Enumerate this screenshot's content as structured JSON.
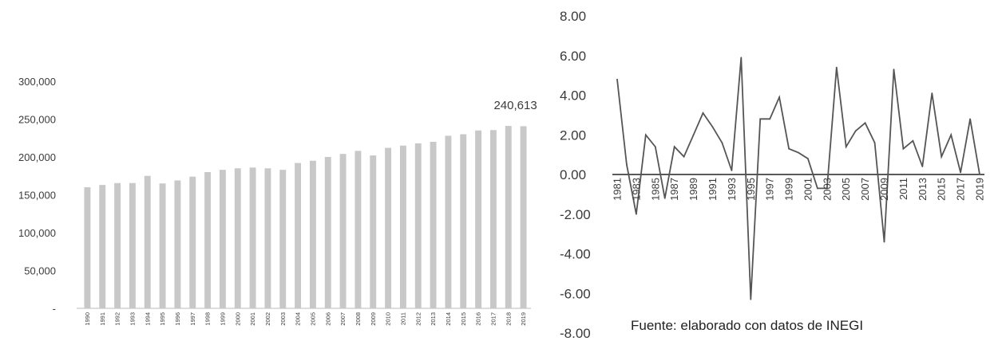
{
  "chart_data": [
    {
      "type": "bar",
      "categories": [
        "1990",
        "1991",
        "1992",
        "1993",
        "1994",
        "1995",
        "1996",
        "1997",
        "1998",
        "1999",
        "2000",
        "2001",
        "2002",
        "2003",
        "2004",
        "2005",
        "2006",
        "2007",
        "2008",
        "2009",
        "2010",
        "2011",
        "2012",
        "2013",
        "2014",
        "2015",
        "2016",
        "2017",
        "2018",
        "2019"
      ],
      "values": [
        160000,
        163000,
        165500,
        165500,
        175000,
        165000,
        169000,
        174000,
        180000,
        183000,
        185000,
        186000,
        185000,
        183000,
        192000,
        195000,
        200000,
        204000,
        208000,
        202000,
        212000,
        215000,
        218000,
        220000,
        228000,
        230000,
        235000,
        235500,
        241000,
        240613
      ],
      "ylim": [
        0,
        300000
      ],
      "yticks": [
        "300,000",
        "250,000",
        "200,000",
        "150,000",
        "100,000",
        "50,000",
        "-"
      ],
      "annotations": [
        {
          "category": "2019",
          "text": "240,613"
        }
      ],
      "color": "#c8c8c8"
    },
    {
      "type": "line",
      "x": [
        1981,
        1982,
        1983,
        1984,
        1985,
        1986,
        1987,
        1988,
        1989,
        1990,
        1991,
        1992,
        1993,
        1994,
        1995,
        1996,
        1997,
        1998,
        1999,
        2000,
        2001,
        2002,
        2003,
        2004,
        2005,
        2006,
        2007,
        2008,
        2009,
        2010,
        2011,
        2012,
        2013,
        2014,
        2015,
        2016,
        2017,
        2018,
        2019
      ],
      "values": [
        4.8,
        0.5,
        -2.0,
        2.0,
        1.4,
        -1.2,
        1.4,
        0.9,
        2.0,
        3.1,
        2.4,
        1.6,
        0.2,
        5.9,
        -6.3,
        2.8,
        2.8,
        3.9,
        1.3,
        1.1,
        0.8,
        -0.7,
        -0.7,
        5.4,
        1.4,
        2.2,
        2.6,
        1.6,
        -3.4,
        5.3,
        1.3,
        1.7,
        0.4,
        4.1,
        0.9,
        2.0,
        0.1,
        2.8,
        0.0
      ],
      "xticks": [
        "1981",
        "1983",
        "1985",
        "1987",
        "1989",
        "1991",
        "1993",
        "1995",
        "1997",
        "1999",
        "2001",
        "2003",
        "2005",
        "2007",
        "2009",
        "2011",
        "2013",
        "2015",
        "2017",
        "2019"
      ],
      "ylim": [
        -8,
        8
      ],
      "yticks": [
        "8.00",
        "6.00",
        "4.00",
        "2.00",
        "0.00",
        "-2.00",
        "-4.00",
        "-6.00",
        "-8.00"
      ],
      "color": "#555555"
    }
  ],
  "source": "Fuente: elaborado con datos de INEGI"
}
